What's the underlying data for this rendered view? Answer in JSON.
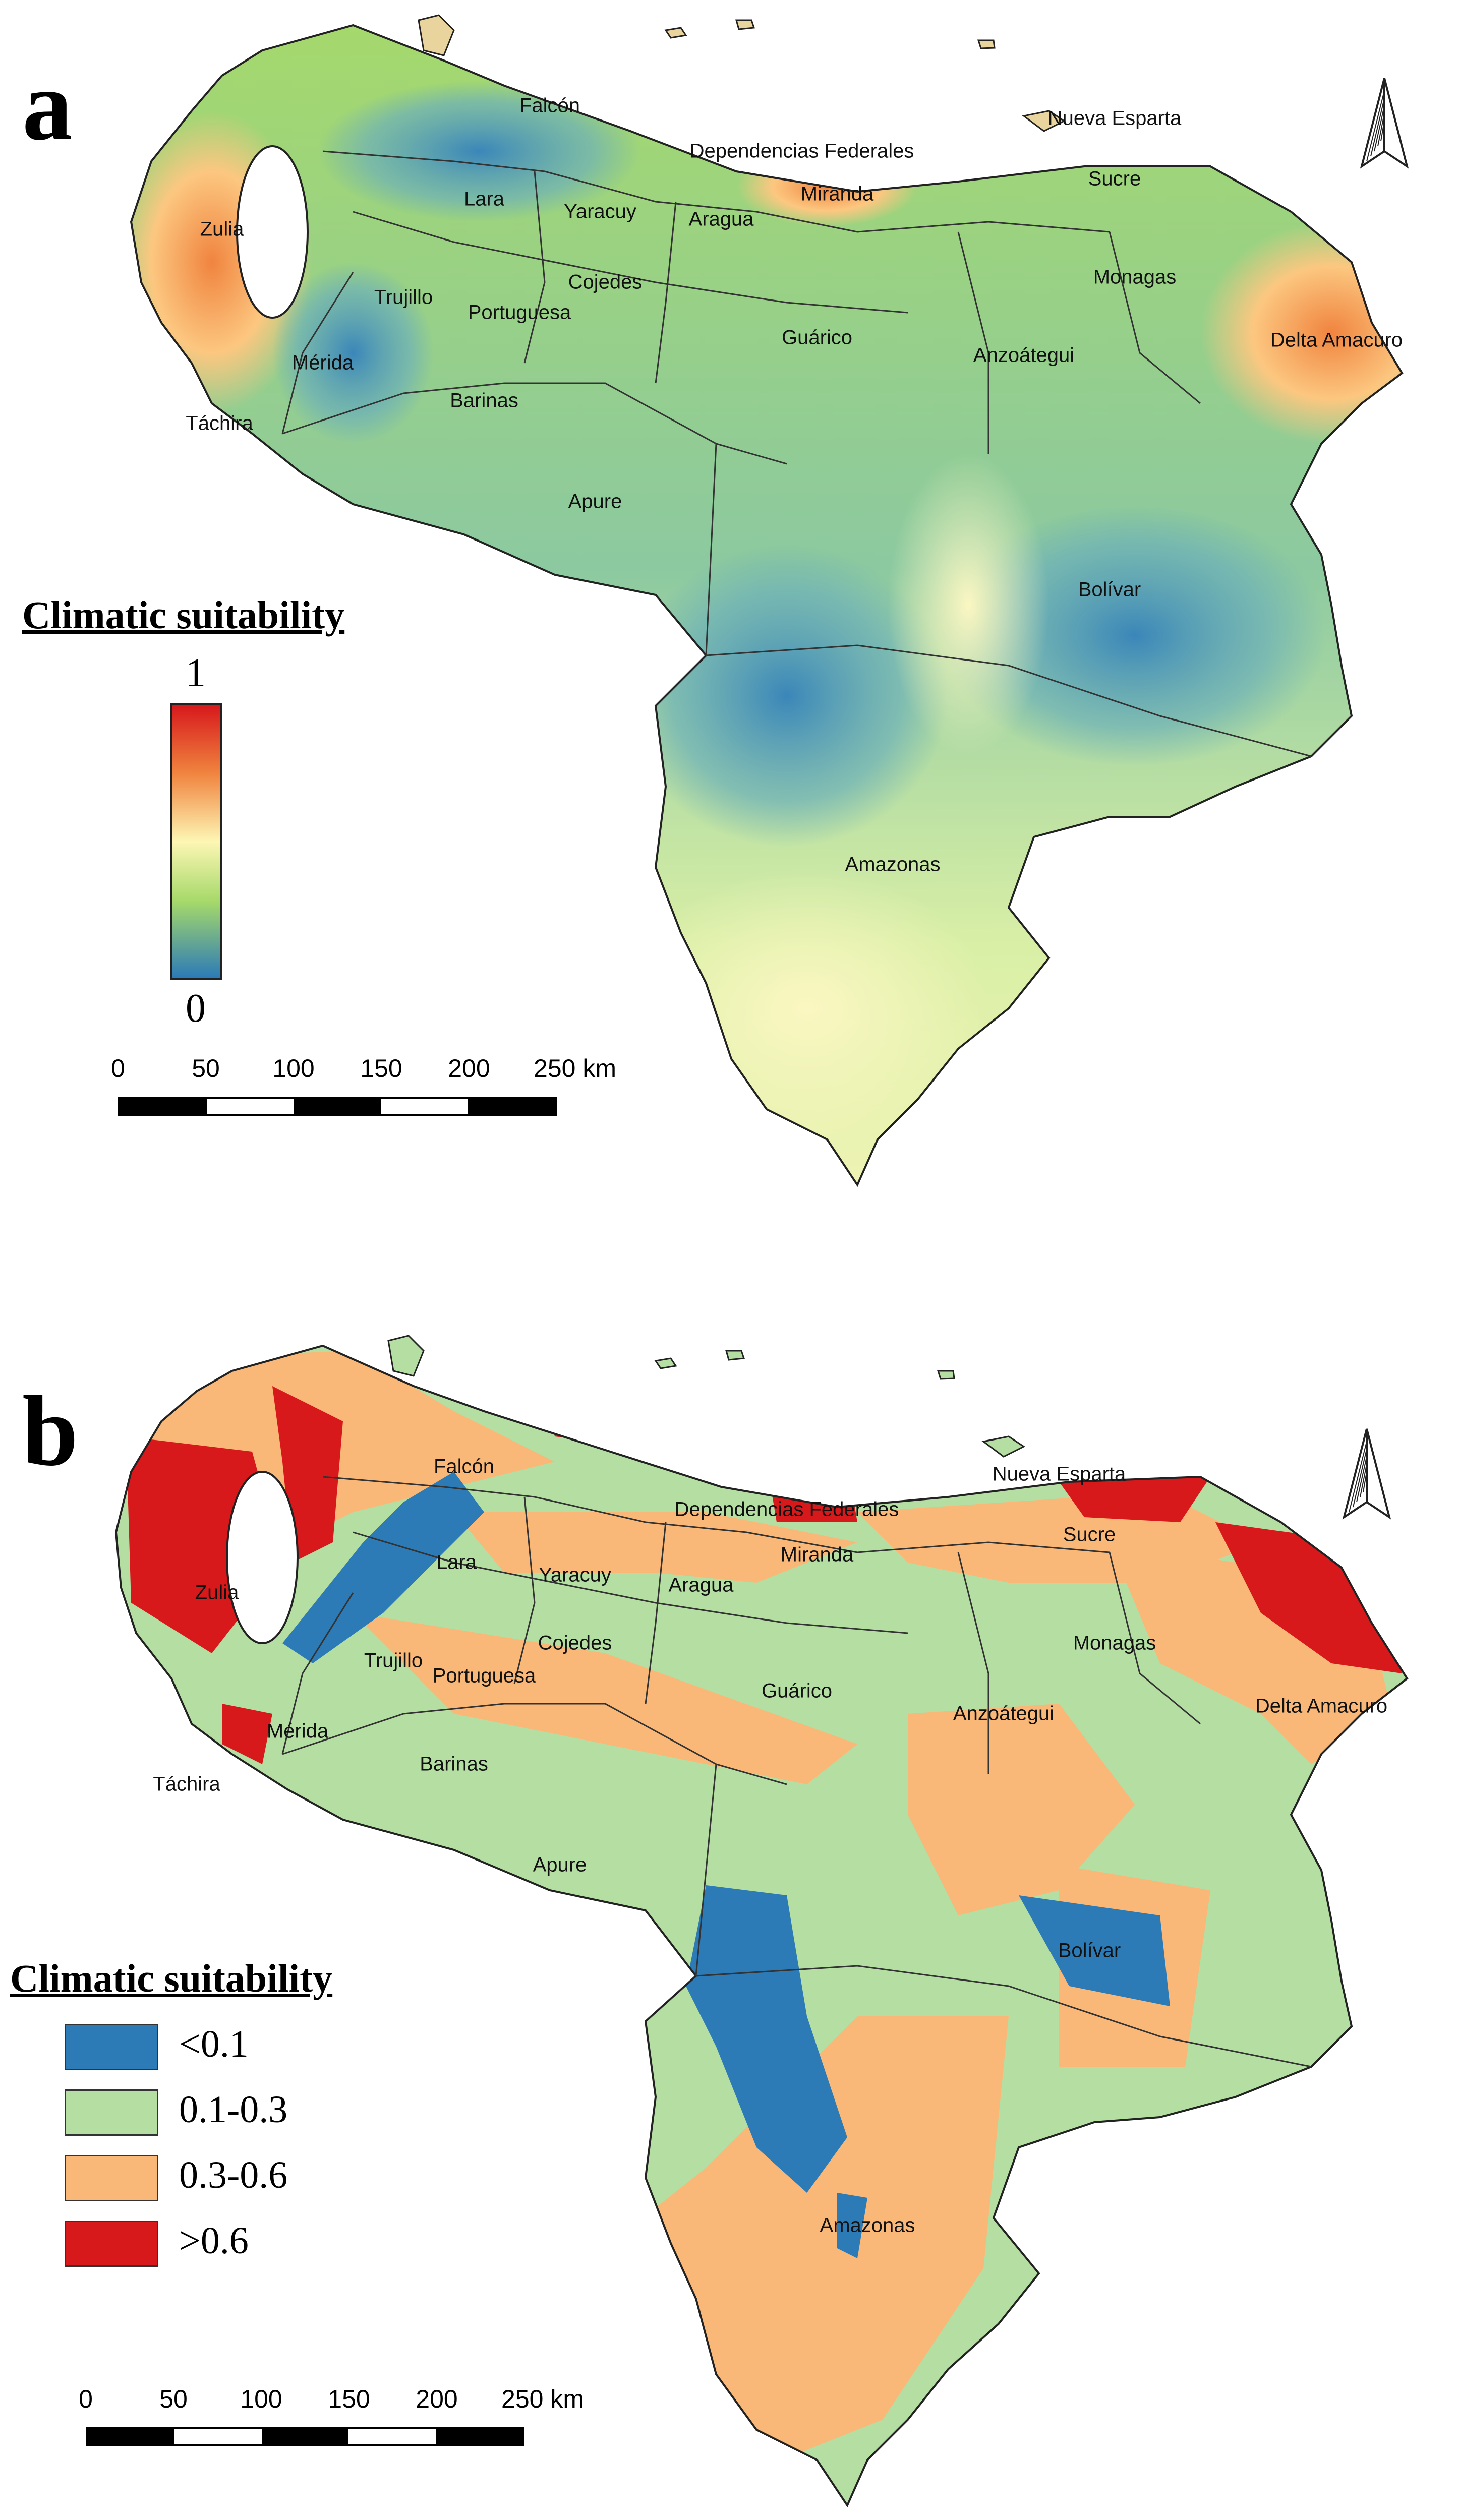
{
  "panels": [
    {
      "letter": "a",
      "legend": {
        "title": "Climatic suitability",
        "max_label": "1",
        "min_label": "0",
        "ramp_colors": [
          "#d7191c",
          "#f0843f",
          "#fdf6b4",
          "#a6d96a",
          "#2c7bb6"
        ]
      },
      "scale_bar": {
        "labels": [
          "0",
          "50",
          "100",
          "150",
          "200",
          "250 km"
        ]
      },
      "regions": {
        "falcon": "Falcón",
        "nueva_esparta": "Nueva Esparta",
        "dependencias_federales": "Dependencias Federales",
        "zulia": "Zulia",
        "lara": "Lara",
        "yaracuy": "Yaracuy",
        "aragua": "Aragua",
        "miranda": "Miranda",
        "sucre": "Sucre",
        "trujillo": "Trujillo",
        "cojedes": "Cojedes",
        "monagas": "Monagas",
        "portuguesa": "Portuguesa",
        "guarico": "Guárico",
        "delta_amacuro": "Delta Amacuro",
        "merida": "Mérida",
        "anzoategui": "Anzoátegui",
        "tachira": "Táchira",
        "barinas": "Barinas",
        "apure": "Apure",
        "bolivar": "Bolívar",
        "amazonas": "Amazonas"
      }
    },
    {
      "letter": "b",
      "legend": {
        "title": "Climatic suitability",
        "classes": [
          {
            "label": "<0.1",
            "color": "#2c7bb6"
          },
          {
            "label": "0.1-0.3",
            "color": "#b5dea2"
          },
          {
            "label": "0.3-0.6",
            "color": "#f9b877"
          },
          {
            "label": ">0.6",
            "color": "#d7191c"
          }
        ]
      },
      "scale_bar": {
        "labels": [
          "0",
          "50",
          "100",
          "150",
          "200",
          "250 km"
        ]
      },
      "regions": {
        "falcon": "Falcón",
        "nueva_esparta": "Nueva Esparta",
        "dependencias_federales": "Dependencias Federales",
        "zulia": "Zulia",
        "lara": "Lara",
        "yaracuy": "Yaracuy",
        "aragua": "Aragua",
        "miranda": "Miranda",
        "sucre": "Sucre",
        "trujillo": "Trujillo",
        "cojedes": "Cojedes",
        "monagas": "Monagas",
        "portuguesa": "Portuguesa",
        "guarico": "Guárico",
        "delta_amacuro": "Delta Amacuro",
        "merida": "Mérida",
        "anzoategui": "Anzoátegui",
        "tachira": "Táchira",
        "barinas": "Barinas",
        "apure": "Apure",
        "bolivar": "Bolívar",
        "amazonas": "Amazonas"
      }
    }
  ]
}
